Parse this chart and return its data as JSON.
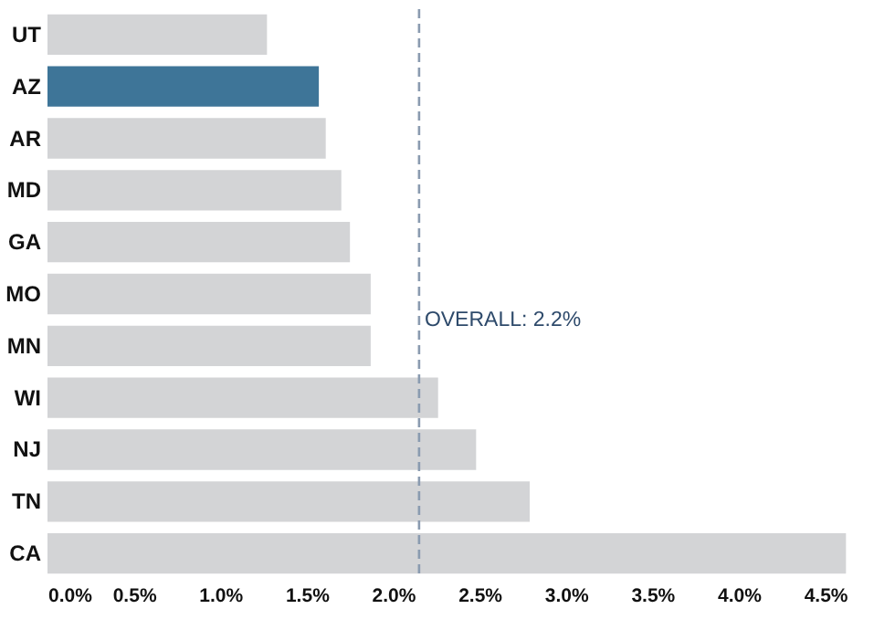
{
  "chart_data": {
    "type": "bar",
    "orientation": "horizontal",
    "categories": [
      "UT",
      "AZ",
      "AR",
      "MD",
      "GA",
      "MO",
      "MN",
      "WI",
      "NJ",
      "TN",
      "CA"
    ],
    "values": [
      1.27,
      1.57,
      1.61,
      1.7,
      1.75,
      1.87,
      1.87,
      2.26,
      2.48,
      2.79,
      4.62
    ],
    "colors": [
      "#d3d4d6",
      "#3e7598",
      "#d3d4d6",
      "#d3d4d6",
      "#d3d4d6",
      "#d3d4d6",
      "#d3d4d6",
      "#d3d4d6",
      "#d3d4d6",
      "#d3d4d6",
      "#d3d4d6"
    ],
    "xlim": [
      0,
      4.65
    ],
    "xticks": [
      {
        "value": 0,
        "label": "0.0%"
      },
      {
        "value": 0.5,
        "label": "0.5%"
      },
      {
        "value": 1,
        "label": "1.0%"
      },
      {
        "value": 1.5,
        "label": "1.5%"
      },
      {
        "value": 2,
        "label": "2.0%"
      },
      {
        "value": 2.5,
        "label": "2.5%"
      },
      {
        "value": 3,
        "label": "3.0%"
      },
      {
        "value": 3.5,
        "label": "3.5%"
      },
      {
        "value": 4,
        "label": "4.0%"
      },
      {
        "value": 4.5,
        "label": "4.5%"
      }
    ],
    "ref_lines": [
      {
        "axis": "x",
        "value": 2.15,
        "label": "OVERALL: 2.2%",
        "color": "#8a9bb0",
        "line_style": "dashed"
      }
    ],
    "grid": false
  }
}
